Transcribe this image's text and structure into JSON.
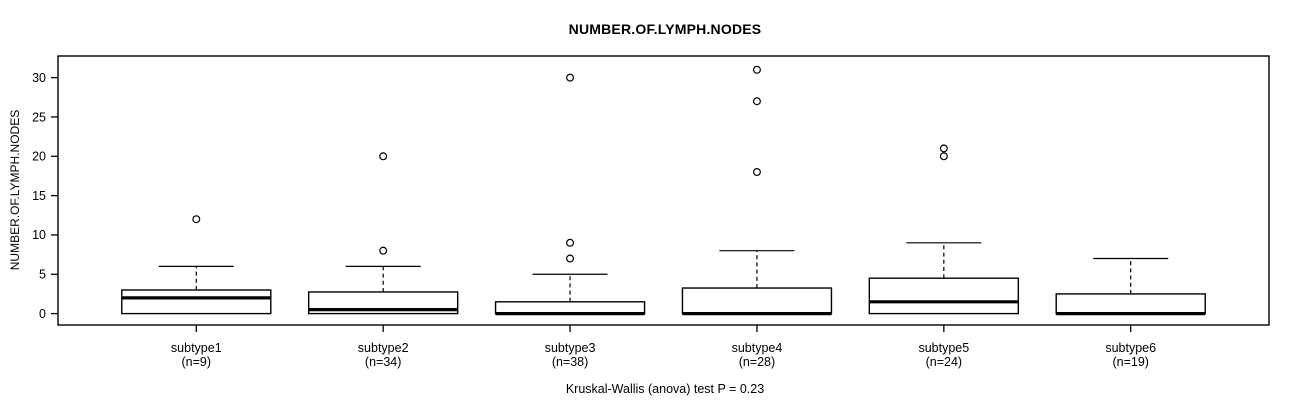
{
  "chart_data": {
    "type": "boxplot",
    "title": "NUMBER.OF.LYMPH.NODES",
    "ylabel": "NUMBER.OF.LYMPH.NODES",
    "xlabel": "",
    "footnote": "Kruskal-Wallis (anova) test P = 0.23",
    "grid": false,
    "legend": null,
    "yticks": [
      0,
      5,
      10,
      15,
      20,
      25,
      30
    ],
    "ylim": [
      -1.45,
      32.75
    ],
    "categories": [
      "subtype1",
      "subtype2",
      "subtype3",
      "subtype4",
      "subtype5",
      "subtype6"
    ],
    "sample_sizes": [
      9,
      34,
      38,
      28,
      24,
      19
    ],
    "groups": [
      {
        "label": "subtype1",
        "n_label": "(n=9)",
        "whisker_low": 0,
        "q1": 0,
        "median": 2,
        "q3": 3,
        "whisker_high": 6,
        "outliers": [
          12
        ]
      },
      {
        "label": "subtype2",
        "n_label": "(n=34)",
        "whisker_low": 0,
        "q1": 0,
        "median": 0.5,
        "q3": 2.75,
        "whisker_high": 6,
        "outliers": [
          8,
          20
        ]
      },
      {
        "label": "subtype3",
        "n_label": "(n=38)",
        "whisker_low": 0,
        "q1": 0,
        "median": 0,
        "q3": 1.5,
        "whisker_high": 5,
        "outliers": [
          7,
          9,
          30
        ]
      },
      {
        "label": "subtype4",
        "n_label": "(n=28)",
        "whisker_low": 0,
        "q1": 0,
        "median": 0,
        "q3": 3.25,
        "whisker_high": 8,
        "outliers": [
          18,
          27,
          31
        ]
      },
      {
        "label": "subtype5",
        "n_label": "(n=24)",
        "whisker_low": 0,
        "q1": 0,
        "median": 1.5,
        "q3": 4.5,
        "whisker_high": 9,
        "outliers": [
          20,
          21
        ]
      },
      {
        "label": "subtype6",
        "n_label": "(n=19)",
        "whisker_low": 0,
        "q1": 0,
        "median": 0,
        "q3": 2.5,
        "whisker_high": 7,
        "outliers": []
      }
    ],
    "colors": {
      "stroke": "#000000",
      "box_fill": "#ffffff",
      "background": "#ffffff"
    }
  }
}
